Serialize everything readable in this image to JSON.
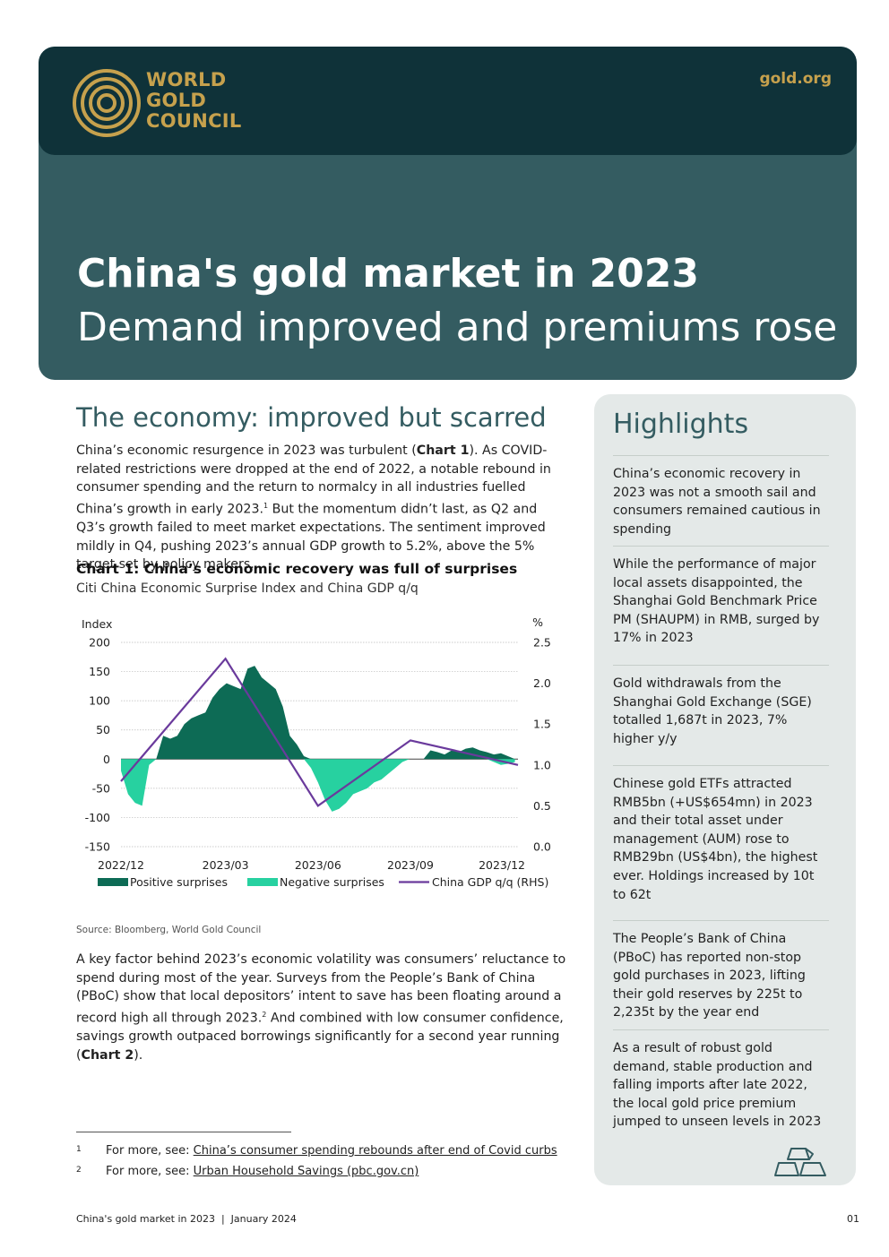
{
  "header": {
    "logo_lines": [
      "WORLD",
      "GOLD",
      "COUNCIL"
    ],
    "site": "gold.org",
    "title": "China's gold market in 2023",
    "subtitle": "Demand improved and premiums rose"
  },
  "main": {
    "section_heading": "The economy: improved but scarred",
    "para1": {
      "a": "China’s economic resurgence in 2023 was turbulent (",
      "b": "Chart 1",
      "c": "). As COVID-related restrictions were dropped at the end of 2022, a notable rebound in consumer spending and the return to normalcy in all industries fuelled China’s growth in early 2023.",
      "sup": "1",
      "d": " But the momentum didn’t last, as Q2 and Q3’s growth failed to meet market expectations. The sentiment improved mildly in Q4, pushing 2023’s annual GDP growth to 5.2%, above the 5% target set by policy makers."
    },
    "chart_title": "Chart 1: China’s economic recovery was full of surprises",
    "chart_subtitle": "Citi China Economic Surprise Index and China GDP q/q",
    "source": "Source: Bloomberg, World Gold Council",
    "para2": {
      "a": "A key factor behind 2023’s economic volatility was consumers’ reluctance to spend during most of the year. Surveys from the People’s Bank of China (PBoC) show that local depositors’ intent to save has been floating around a record high all through 2023.",
      "sup": "2",
      "b": " And combined with low consumer confidence, savings growth outpaced borrowings significantly for a second year running (",
      "c": "Chart 2",
      "d": ")."
    },
    "footnotes": [
      {
        "num": "1",
        "prefix": "For more, see: ",
        "link": "China’s consumer spending rebounds after end of Covid curbs"
      },
      {
        "num": "2",
        "prefix": "For more, see: ",
        "link": "Urban Household Savings (pbc.gov.cn)"
      }
    ]
  },
  "highlights": {
    "heading": "Highlights",
    "items": [
      "China’s economic recovery in 2023 was not a smooth sail and consumers remained cautious in spending",
      "While the performance of major local assets disappointed, the Shanghai Gold Benchmark Price PM (SHAUPM) in RMB, surged by 17% in 2023",
      "Gold withdrawals from the Shanghai Gold Exchange (SGE) totalled 1,687t in 2023, 7% higher y/y",
      "Chinese gold ETFs attracted RMB5bn (+US$654mn) in 2023 and their total asset under management (AUM) rose to RMB29bn (US$4bn), the highest ever. Holdings increased by 10t to 62t",
      "The People’s Bank of China (PBoC) has reported non-stop gold purchases in 2023, lifting their gold reserves by 225t to 2,235t by the year end",
      "As a result of robust gold demand, stable production and falling imports after late 2022, the local gold price premium jumped to unseen levels in 2023"
    ],
    "icon": "gold-bars-icon"
  },
  "footer": {
    "left": "China's gold market in 2023  |  January 2024",
    "page": "01"
  },
  "colors": {
    "hero": "#345c61",
    "topband": "#0f3239",
    "gold": "#c6a14d",
    "positive": "#0d6b55",
    "negative": "#27d1a0",
    "gdp_line": "#6a3a9c",
    "sidebar": "#e4e9e8"
  },
  "chart_data": {
    "type": "area",
    "y_left_label": "Index",
    "y_right_label": "%",
    "ylim_left": [
      -150,
      200
    ],
    "ylim_right": [
      0.0,
      2.5
    ],
    "y_left_ticks": [
      "200",
      "150",
      "100",
      "50",
      "0",
      "-50",
      "-100",
      "-150"
    ],
    "y_right_ticks": [
      "2.5",
      "2.0",
      "1.5",
      "1.0",
      "0.5",
      "0.0"
    ],
    "x_ticks": [
      "2022/12",
      "2023/03",
      "2023/06",
      "2023/09",
      "2023/12"
    ],
    "grid": true,
    "legend_position": "bottom",
    "series": [
      {
        "name": "Positive surprises",
        "kind": "area",
        "x": [
          "2022/12/01",
          "2022/12/08",
          "2022/12/15",
          "2022/12/22",
          "2022/12/29",
          "2023/01/05",
          "2023/01/12",
          "2023/01/19",
          "2023/01/26",
          "2023/02/02",
          "2023/02/09",
          "2023/02/16",
          "2023/02/23",
          "2023/03/02",
          "2023/03/09",
          "2023/03/16",
          "2023/03/23",
          "2023/03/30",
          "2023/04/06",
          "2023/04/13",
          "2023/04/20",
          "2023/04/27",
          "2023/05/04",
          "2023/05/11",
          "2023/05/18",
          "2023/05/25",
          "2023/06/01",
          "2023/06/08",
          "2023/06/15",
          "2023/06/22",
          "2023/06/29",
          "2023/07/06",
          "2023/07/13",
          "2023/07/20",
          "2023/07/27",
          "2023/08/03",
          "2023/08/10",
          "2023/08/17",
          "2023/08/24",
          "2023/08/31",
          "2023/09/07",
          "2023/09/14",
          "2023/09/21",
          "2023/09/28",
          "2023/10/05",
          "2023/10/12",
          "2023/10/19",
          "2023/10/26",
          "2023/11/02",
          "2023/11/09",
          "2023/11/16",
          "2023/11/23",
          "2023/11/30",
          "2023/12/07",
          "2023/12/14",
          "2023/12/21",
          "2023/12/28"
        ],
        "values": [
          0,
          0,
          0,
          0,
          0,
          0,
          40,
          35,
          40,
          60,
          70,
          75,
          80,
          105,
          120,
          130,
          125,
          120,
          155,
          160,
          140,
          130,
          120,
          90,
          40,
          25,
          5,
          0,
          0,
          0,
          0,
          0,
          0,
          0,
          0,
          0,
          0,
          0,
          0,
          0,
          0,
          0,
          0,
          0,
          15,
          12,
          8,
          15,
          12,
          18,
          20,
          15,
          12,
          8,
          10,
          5,
          0
        ]
      },
      {
        "name": "Negative surprises",
        "kind": "area",
        "x": [
          "2022/12/01",
          "2022/12/08",
          "2022/12/15",
          "2022/12/22",
          "2022/12/29",
          "2023/01/05",
          "2023/01/12",
          "2023/01/19",
          "2023/01/26",
          "2023/02/02",
          "2023/02/09",
          "2023/02/16",
          "2023/02/23",
          "2023/03/02",
          "2023/03/09",
          "2023/03/16",
          "2023/03/23",
          "2023/03/30",
          "2023/04/06",
          "2023/04/13",
          "2023/04/20",
          "2023/04/27",
          "2023/05/04",
          "2023/05/11",
          "2023/05/18",
          "2023/05/25",
          "2023/06/01",
          "2023/06/08",
          "2023/06/15",
          "2023/06/22",
          "2023/06/29",
          "2023/07/06",
          "2023/07/13",
          "2023/07/20",
          "2023/07/27",
          "2023/08/03",
          "2023/08/10",
          "2023/08/17",
          "2023/08/24",
          "2023/08/31",
          "2023/09/07",
          "2023/09/14",
          "2023/09/21",
          "2023/09/28",
          "2023/10/05",
          "2023/10/12",
          "2023/10/19",
          "2023/10/26",
          "2023/11/02",
          "2023/11/09",
          "2023/11/16",
          "2023/11/23",
          "2023/11/30",
          "2023/12/07",
          "2023/12/14",
          "2023/12/21",
          "2023/12/28"
        ],
        "values": [
          -20,
          -60,
          -75,
          -80,
          -10,
          0,
          0,
          0,
          0,
          0,
          0,
          0,
          0,
          0,
          0,
          0,
          0,
          0,
          0,
          0,
          0,
          0,
          0,
          0,
          0,
          0,
          0,
          -15,
          -40,
          -70,
          -90,
          -85,
          -75,
          -60,
          -55,
          -50,
          -40,
          -35,
          -25,
          -15,
          -5,
          0,
          0,
          0,
          0,
          0,
          0,
          0,
          0,
          0,
          0,
          0,
          0,
          -5,
          -10,
          -8,
          -5
        ]
      },
      {
        "name": "China GDP q/q (RHS)",
        "kind": "line",
        "axis": "right",
        "x": [
          "2022/12",
          "2023/03",
          "2023/06",
          "2023/09",
          "2023/12"
        ],
        "values": [
          0.8,
          2.3,
          0.5,
          1.3,
          1.0
        ]
      }
    ]
  }
}
